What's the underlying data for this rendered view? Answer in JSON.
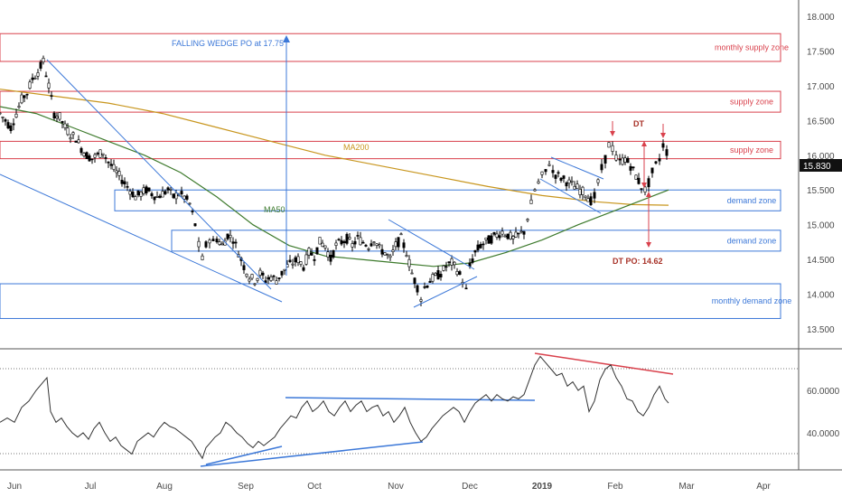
{
  "chart_data": [
    {
      "type": "candlestick",
      "y_ticks": [
        "18.000",
        "17.500",
        "17.000",
        "16.500",
        "16.000",
        "15.500",
        "15.000",
        "14.500",
        "14.000",
        "13.500"
      ],
      "ylim": [
        13.5,
        18.0
      ],
      "x_ticks": [
        "Jun",
        "Jul",
        "Aug",
        "Sep",
        "Oct",
        "Nov",
        "Dec",
        "2019",
        "Feb",
        "Mar",
        "Apr"
      ],
      "last_price": "15.830",
      "price_path": [
        [
          0,
          16.6
        ],
        [
          6,
          16.5
        ],
        [
          12,
          16.4
        ],
        [
          18,
          16.6
        ],
        [
          24,
          16.8
        ],
        [
          30,
          16.9
        ],
        [
          36,
          17.1
        ],
        [
          42,
          17.2
        ],
        [
          48,
          17.35
        ],
        [
          54,
          17.0
        ],
        [
          60,
          16.6
        ],
        [
          66,
          16.55
        ],
        [
          72,
          16.4
        ],
        [
          78,
          16.3
        ],
        [
          84,
          16.25
        ],
        [
          90,
          16.1
        ],
        [
          96,
          16.0
        ],
        [
          102,
          15.95
        ],
        [
          108,
          16.0
        ],
        [
          114,
          16.05
        ],
        [
          120,
          15.9
        ],
        [
          126,
          15.8
        ],
        [
          132,
          15.7
        ],
        [
          138,
          15.6
        ],
        [
          144,
          15.5
        ],
        [
          150,
          15.4
        ],
        [
          156,
          15.45
        ],
        [
          162,
          15.5
        ],
        [
          168,
          15.45
        ],
        [
          174,
          15.4
        ],
        [
          180,
          15.45
        ],
        [
          186,
          15.5
        ],
        [
          192,
          15.4
        ],
        [
          198,
          15.45
        ],
        [
          204,
          15.4
        ],
        [
          210,
          15.3
        ],
        [
          216,
          15.0
        ],
        [
          220,
          14.7
        ],
        [
          224,
          14.5
        ],
        [
          228,
          14.7
        ],
        [
          232,
          14.8
        ],
        [
          236,
          14.75
        ],
        [
          240,
          14.8
        ],
        [
          246,
          14.7
        ],
        [
          252,
          14.85
        ],
        [
          258,
          14.8
        ],
        [
          264,
          14.6
        ],
        [
          270,
          14.4
        ],
        [
          276,
          14.25
        ],
        [
          282,
          14.2
        ],
        [
          288,
          14.3
        ],
        [
          294,
          14.2
        ],
        [
          300,
          14.25
        ],
        [
          306,
          14.2
        ],
        [
          312,
          14.3
        ],
        [
          318,
          14.4
        ],
        [
          324,
          14.45
        ],
        [
          330,
          14.5
        ],
        [
          336,
          14.4
        ],
        [
          342,
          14.6
        ],
        [
          348,
          14.55
        ],
        [
          354,
          14.75
        ],
        [
          360,
          14.7
        ],
        [
          366,
          14.5
        ],
        [
          372,
          14.7
        ],
        [
          378,
          14.75
        ],
        [
          384,
          14.8
        ],
        [
          390,
          14.7
        ],
        [
          396,
          14.8
        ],
        [
          402,
          14.75
        ],
        [
          408,
          14.7
        ],
        [
          414,
          14.8
        ],
        [
          420,
          14.65
        ],
        [
          426,
          14.6
        ],
        [
          432,
          14.5
        ],
        [
          438,
          14.7
        ],
        [
          444,
          14.8
        ],
        [
          450,
          14.6
        ],
        [
          456,
          14.3
        ],
        [
          462,
          14.1
        ],
        [
          466,
          13.95
        ],
        [
          470,
          14.1
        ],
        [
          476,
          14.2
        ],
        [
          482,
          14.25
        ],
        [
          488,
          14.3
        ],
        [
          494,
          14.4
        ],
        [
          500,
          14.45
        ],
        [
          506,
          14.35
        ],
        [
          512,
          14.2
        ],
        [
          516,
          14.05
        ],
        [
          520,
          14.4
        ],
        [
          526,
          14.6
        ],
        [
          532,
          14.7
        ],
        [
          538,
          14.75
        ],
        [
          544,
          14.8
        ],
        [
          550,
          14.85
        ],
        [
          556,
          14.9
        ],
        [
          562,
          14.85
        ],
        [
          568,
          14.8
        ],
        [
          574,
          14.85
        ],
        [
          580,
          14.9
        ],
        [
          584,
          15.1
        ],
        [
          588,
          15.3
        ],
        [
          592,
          15.5
        ],
        [
          596,
          15.6
        ],
        [
          600,
          15.7
        ],
        [
          604,
          15.75
        ],
        [
          608,
          15.9
        ],
        [
          612,
          15.75
        ],
        [
          618,
          15.7
        ],
        [
          624,
          15.65
        ],
        [
          630,
          15.6
        ],
        [
          636,
          15.55
        ],
        [
          642,
          15.5
        ],
        [
          648,
          15.45
        ],
        [
          654,
          15.35
        ],
        [
          658,
          15.4
        ],
        [
          662,
          15.6
        ],
        [
          666,
          15.8
        ],
        [
          670,
          15.95
        ],
        [
          674,
          16.15
        ],
        [
          678,
          16.1
        ],
        [
          682,
          15.95
        ],
        [
          686,
          15.9
        ],
        [
          692,
          15.95
        ],
        [
          698,
          15.85
        ],
        [
          704,
          15.7
        ],
        [
          710,
          15.55
        ],
        [
          714,
          15.5
        ],
        [
          718,
          15.6
        ],
        [
          722,
          15.75
        ],
        [
          726,
          15.85
        ],
        [
          730,
          15.95
        ],
        [
          734,
          16.15
        ],
        [
          738,
          16.05
        ],
        [
          740,
          15.83
        ]
      ],
      "moving_averages": [
        {
          "name": "MA200",
          "color": "#c8961e",
          "path": [
            [
              0,
              16.95
            ],
            [
              60,
              16.85
            ],
            [
              120,
              16.75
            ],
            [
              180,
              16.6
            ],
            [
              240,
              16.4
            ],
            [
              300,
              16.2
            ],
            [
              360,
              16.0
            ],
            [
              420,
              15.85
            ],
            [
              480,
              15.7
            ],
            [
              540,
              15.55
            ],
            [
              600,
              15.42
            ],
            [
              660,
              15.33
            ],
            [
              700,
              15.29
            ],
            [
              740,
              15.28
            ]
          ]
        },
        {
          "name": "MA50",
          "color": "#3d7a2c",
          "path": [
            [
              0,
              16.7
            ],
            [
              40,
              16.6
            ],
            [
              80,
              16.4
            ],
            [
              120,
              16.2
            ],
            [
              160,
              16.0
            ],
            [
              200,
              15.75
            ],
            [
              240,
              15.4
            ],
            [
              280,
              15.0
            ],
            [
              320,
              14.7
            ],
            [
              360,
              14.55
            ],
            [
              400,
              14.5
            ],
            [
              440,
              14.45
            ],
            [
              480,
              14.4
            ],
            [
              520,
              14.45
            ],
            [
              560,
              14.6
            ],
            [
              600,
              14.78
            ],
            [
              640,
              15.0
            ],
            [
              680,
              15.2
            ],
            [
              720,
              15.4
            ],
            [
              740,
              15.5
            ]
          ]
        }
      ]
    },
    {
      "type": "line",
      "name": "oscillator",
      "y_ticks": [
        "60.0000",
        "40.0000"
      ],
      "ylim": [
        25,
        80
      ],
      "path": [
        [
          0,
          45
        ],
        [
          8,
          47
        ],
        [
          16,
          45
        ],
        [
          24,
          52
        ],
        [
          32,
          55
        ],
        [
          40,
          60
        ],
        [
          48,
          64
        ],
        [
          52,
          66
        ],
        [
          56,
          50
        ],
        [
          62,
          45
        ],
        [
          68,
          47
        ],
        [
          74,
          43
        ],
        [
          80,
          40
        ],
        [
          86,
          38
        ],
        [
          92,
          40
        ],
        [
          98,
          37
        ],
        [
          104,
          42
        ],
        [
          110,
          45
        ],
        [
          116,
          40
        ],
        [
          122,
          36
        ],
        [
          128,
          38
        ],
        [
          134,
          34
        ],
        [
          140,
          32
        ],
        [
          146,
          30
        ],
        [
          152,
          36
        ],
        [
          158,
          38
        ],
        [
          164,
          40
        ],
        [
          170,
          38
        ],
        [
          176,
          42
        ],
        [
          182,
          45
        ],
        [
          188,
          43
        ],
        [
          194,
          42
        ],
        [
          200,
          40
        ],
        [
          206,
          38
        ],
        [
          212,
          36
        ],
        [
          218,
          32
        ],
        [
          224,
          28
        ],
        [
          228,
          33
        ],
        [
          232,
          35
        ],
        [
          238,
          38
        ],
        [
          244,
          40
        ],
        [
          250,
          45
        ],
        [
          256,
          43
        ],
        [
          262,
          40
        ],
        [
          268,
          38
        ],
        [
          274,
          35
        ],
        [
          280,
          33
        ],
        [
          286,
          36
        ],
        [
          292,
          34
        ],
        [
          298,
          36
        ],
        [
          304,
          38
        ],
        [
          310,
          42
        ],
        [
          316,
          45
        ],
        [
          322,
          48
        ],
        [
          328,
          47
        ],
        [
          334,
          52
        ],
        [
          340,
          55
        ],
        [
          346,
          50
        ],
        [
          352,
          52
        ],
        [
          358,
          55
        ],
        [
          364,
          50
        ],
        [
          370,
          48
        ],
        [
          376,
          52
        ],
        [
          382,
          55
        ],
        [
          388,
          50
        ],
        [
          394,
          53
        ],
        [
          400,
          55
        ],
        [
          406,
          50
        ],
        [
          412,
          52
        ],
        [
          418,
          53
        ],
        [
          424,
          48
        ],
        [
          430,
          50
        ],
        [
          436,
          45
        ],
        [
          442,
          48
        ],
        [
          448,
          52
        ],
        [
          454,
          45
        ],
        [
          460,
          40
        ],
        [
          466,
          36
        ],
        [
          472,
          38
        ],
        [
          478,
          42
        ],
        [
          484,
          45
        ],
        [
          490,
          48
        ],
        [
          496,
          50
        ],
        [
          502,
          52
        ],
        [
          508,
          50
        ],
        [
          514,
          45
        ],
        [
          520,
          50
        ],
        [
          526,
          54
        ],
        [
          532,
          56
        ],
        [
          538,
          58
        ],
        [
          544,
          55
        ],
        [
          550,
          58
        ],
        [
          556,
          56
        ],
        [
          562,
          55
        ],
        [
          568,
          57
        ],
        [
          574,
          56
        ],
        [
          580,
          58
        ],
        [
          586,
          65
        ],
        [
          592,
          72
        ],
        [
          598,
          76
        ],
        [
          604,
          73
        ],
        [
          610,
          70
        ],
        [
          616,
          67
        ],
        [
          622,
          68
        ],
        [
          628,
          62
        ],
        [
          634,
          64
        ],
        [
          640,
          60
        ],
        [
          646,
          62
        ],
        [
          652,
          50
        ],
        [
          658,
          55
        ],
        [
          664,
          65
        ],
        [
          670,
          70
        ],
        [
          676,
          72
        ],
        [
          682,
          66
        ],
        [
          688,
          62
        ],
        [
          694,
          56
        ],
        [
          700,
          55
        ],
        [
          706,
          50
        ],
        [
          712,
          48
        ],
        [
          718,
          52
        ],
        [
          724,
          58
        ],
        [
          730,
          62
        ],
        [
          736,
          56
        ],
        [
          740,
          54
        ]
      ]
    }
  ],
  "zones": [
    {
      "label": "monthly supply zone",
      "color": "#d9414c",
      "top": 17.75,
      "bottom": 17.35
    },
    {
      "label": "supply zone",
      "color": "#d9414c",
      "top": 16.92,
      "bottom": 16.62
    },
    {
      "label": "supply zone",
      "color": "#d9414c",
      "top": 16.2,
      "bottom": 15.95
    },
    {
      "label": "demand zone",
      "color": "#3c78d8",
      "top": 15.5,
      "bottom": 15.2
    },
    {
      "label": "demand zone",
      "color": "#3c78d8",
      "top": 14.92,
      "bottom": 14.62
    },
    {
      "label": "monthly demand zone",
      "color": "#3c78d8",
      "top": 14.15,
      "bottom": 13.65
    }
  ],
  "annotations": {
    "falling_wedge": "FALLING WEDGE PO at 17.75",
    "ma200": "MA200",
    "ma50": "MA50",
    "dt": "DT",
    "dt_po": "DT PO: 14.62"
  },
  "colors": {
    "bullish": "#ffffff",
    "bearish": "#000000",
    "wedge": "#3c78d8",
    "resistance": "#d9414c"
  }
}
